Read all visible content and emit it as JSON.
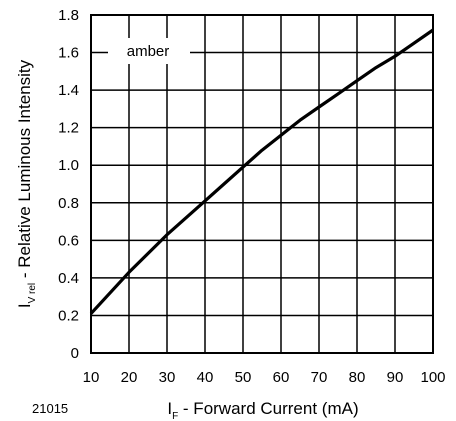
{
  "chart_data": {
    "type": "line",
    "xlabel": {
      "main": "I",
      "sub": "F",
      "rest": " - Forward Current (mA)"
    },
    "ylabel": {
      "main": "I",
      "sub": "V rel",
      "rest": " - Relative Luminous Intensity"
    },
    "figure_id": "21015",
    "xlim": [
      10,
      100
    ],
    "ylim": [
      0,
      1.8
    ],
    "x_ticks": [
      "10",
      "20",
      "30",
      "40",
      "50",
      "60",
      "70",
      "80",
      "90",
      "100"
    ],
    "y_ticks": [
      "0",
      "0.2",
      "0.4",
      "0.6",
      "0.8",
      "1.0",
      "1.2",
      "1.4",
      "1.6",
      "1.8"
    ],
    "grid": true,
    "annotation": "amber",
    "series": [
      {
        "x": [
          10,
          15,
          20,
          25,
          30,
          35,
          40,
          45,
          50,
          55,
          60,
          65,
          70,
          75,
          80,
          85,
          90,
          95,
          100
        ],
        "y": [
          0.21,
          0.32,
          0.43,
          0.53,
          0.63,
          0.72,
          0.81,
          0.9,
          0.99,
          1.08,
          1.16,
          1.24,
          1.31,
          1.38,
          1.45,
          1.52,
          1.58,
          1.65,
          1.72
        ]
      }
    ]
  }
}
